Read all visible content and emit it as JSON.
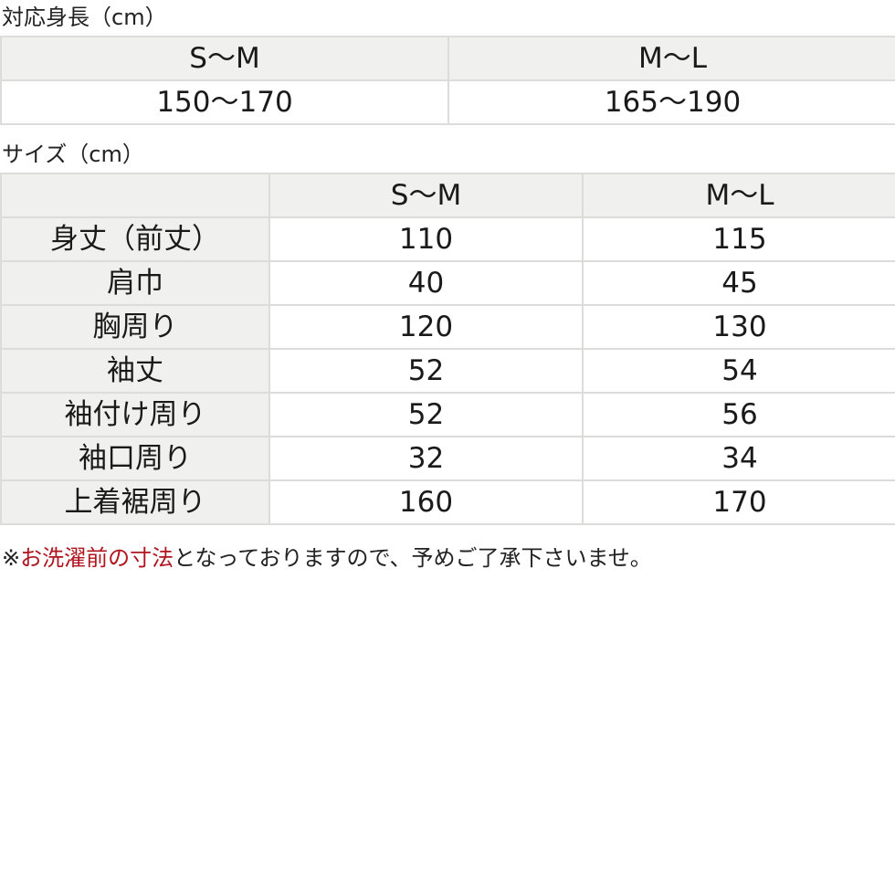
{
  "height_table": {
    "caption": "対応身長（cm）",
    "headers": [
      "S〜M",
      "M〜L"
    ],
    "values": [
      "150〜170",
      "165〜190"
    ]
  },
  "size_table": {
    "caption": "サイズ（cm）",
    "headers": [
      "",
      "S〜M",
      "M〜L"
    ],
    "rows": [
      {
        "label": "身丈（前丈）",
        "sm": "110",
        "ml": "115"
      },
      {
        "label": "肩巾",
        "sm": "40",
        "ml": "45"
      },
      {
        "label": "胸周り",
        "sm": "120",
        "ml": "130"
      },
      {
        "label": "袖丈",
        "sm": "52",
        "ml": "54"
      },
      {
        "label": "袖付け周り",
        "sm": "52",
        "ml": "56"
      },
      {
        "label": "袖口周り",
        "sm": "32",
        "ml": "34"
      },
      {
        "label": "上着裾周り",
        "sm": "160",
        "ml": "170"
      }
    ]
  },
  "note": {
    "prefix": "※",
    "highlight": "お洗濯前の寸法",
    "rest": "となっておりますので、予めご了承下さいませ。",
    "highlight_color": "#b0141e"
  }
}
